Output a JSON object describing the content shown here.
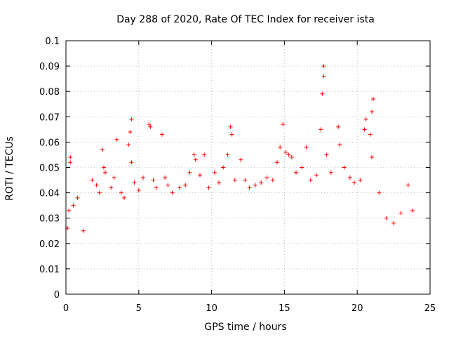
{
  "chart_data": {
    "type": "scatter",
    "title": "Day 288 of 2020, Rate Of TEC Index for receiver ista",
    "xlabel": "GPS time / hours",
    "ylabel": "ROTI / TECUs",
    "xlim": [
      0,
      25
    ],
    "ylim": [
      0,
      0.1
    ],
    "x_ticks": [
      "0",
      "5",
      "10",
      "15",
      "20",
      "25"
    ],
    "y_ticks": [
      "0",
      "0.01",
      "0.02",
      "0.03",
      "0.04",
      "0.05",
      "0.06",
      "0.07",
      "0.08",
      "0.09",
      "0.1"
    ],
    "grid": true,
    "marker": "plus",
    "color": "#ff0000",
    "series": [
      {
        "points": [
          [
            0.1,
            0.026
          ],
          [
            0.2,
            0.033
          ],
          [
            0.3,
            0.054
          ],
          [
            0.3,
            0.052
          ],
          [
            0.5,
            0.035
          ],
          [
            0.8,
            0.038
          ],
          [
            1.2,
            0.025
          ],
          [
            1.8,
            0.045
          ],
          [
            2.1,
            0.043
          ],
          [
            2.3,
            0.04
          ],
          [
            2.5,
            0.057
          ],
          [
            2.6,
            0.05
          ],
          [
            2.7,
            0.048
          ],
          [
            3.1,
            0.042
          ],
          [
            3.3,
            0.046
          ],
          [
            3.5,
            0.061
          ],
          [
            3.8,
            0.04
          ],
          [
            4.0,
            0.038
          ],
          [
            4.3,
            0.059
          ],
          [
            4.4,
            0.064
          ],
          [
            4.5,
            0.069
          ],
          [
            4.5,
            0.052
          ],
          [
            4.7,
            0.044
          ],
          [
            5.0,
            0.041
          ],
          [
            5.3,
            0.046
          ],
          [
            5.7,
            0.067
          ],
          [
            5.8,
            0.066
          ],
          [
            6.0,
            0.045
          ],
          [
            6.2,
            0.042
          ],
          [
            6.6,
            0.063
          ],
          [
            6.8,
            0.046
          ],
          [
            7.0,
            0.043
          ],
          [
            7.3,
            0.04
          ],
          [
            7.8,
            0.042
          ],
          [
            8.2,
            0.043
          ],
          [
            8.5,
            0.048
          ],
          [
            8.8,
            0.055
          ],
          [
            8.9,
            0.053
          ],
          [
            9.2,
            0.047
          ],
          [
            9.5,
            0.055
          ],
          [
            9.8,
            0.042
          ],
          [
            10.2,
            0.048
          ],
          [
            10.5,
            0.044
          ],
          [
            10.8,
            0.05
          ],
          [
            11.1,
            0.055
          ],
          [
            11.3,
            0.066
          ],
          [
            11.4,
            0.063
          ],
          [
            11.6,
            0.045
          ],
          [
            12.0,
            0.053
          ],
          [
            12.3,
            0.045
          ],
          [
            12.6,
            0.042
          ],
          [
            13.0,
            0.043
          ],
          [
            13.4,
            0.044
          ],
          [
            13.8,
            0.046
          ],
          [
            14.2,
            0.045
          ],
          [
            14.5,
            0.052
          ],
          [
            14.7,
            0.058
          ],
          [
            14.9,
            0.067
          ],
          [
            15.1,
            0.056
          ],
          [
            15.3,
            0.055
          ],
          [
            15.5,
            0.054
          ],
          [
            15.8,
            0.048
          ],
          [
            16.2,
            0.05
          ],
          [
            16.5,
            0.058
          ],
          [
            16.8,
            0.045
          ],
          [
            17.2,
            0.047
          ],
          [
            17.5,
            0.065
          ],
          [
            17.6,
            0.079
          ],
          [
            17.7,
            0.086
          ],
          [
            17.7,
            0.09
          ],
          [
            17.9,
            0.055
          ],
          [
            18.2,
            0.048
          ],
          [
            18.7,
            0.066
          ],
          [
            18.8,
            0.059
          ],
          [
            19.1,
            0.05
          ],
          [
            19.5,
            0.046
          ],
          [
            19.8,
            0.044
          ],
          [
            20.2,
            0.045
          ],
          [
            20.5,
            0.065
          ],
          [
            20.6,
            0.069
          ],
          [
            20.9,
            0.063
          ],
          [
            21.0,
            0.072
          ],
          [
            21.1,
            0.077
          ],
          [
            21.0,
            0.054
          ],
          [
            21.5,
            0.04
          ],
          [
            22.0,
            0.03
          ],
          [
            22.5,
            0.028
          ],
          [
            23.0,
            0.032
          ],
          [
            23.5,
            0.043
          ],
          [
            23.8,
            0.033
          ]
        ]
      }
    ]
  }
}
